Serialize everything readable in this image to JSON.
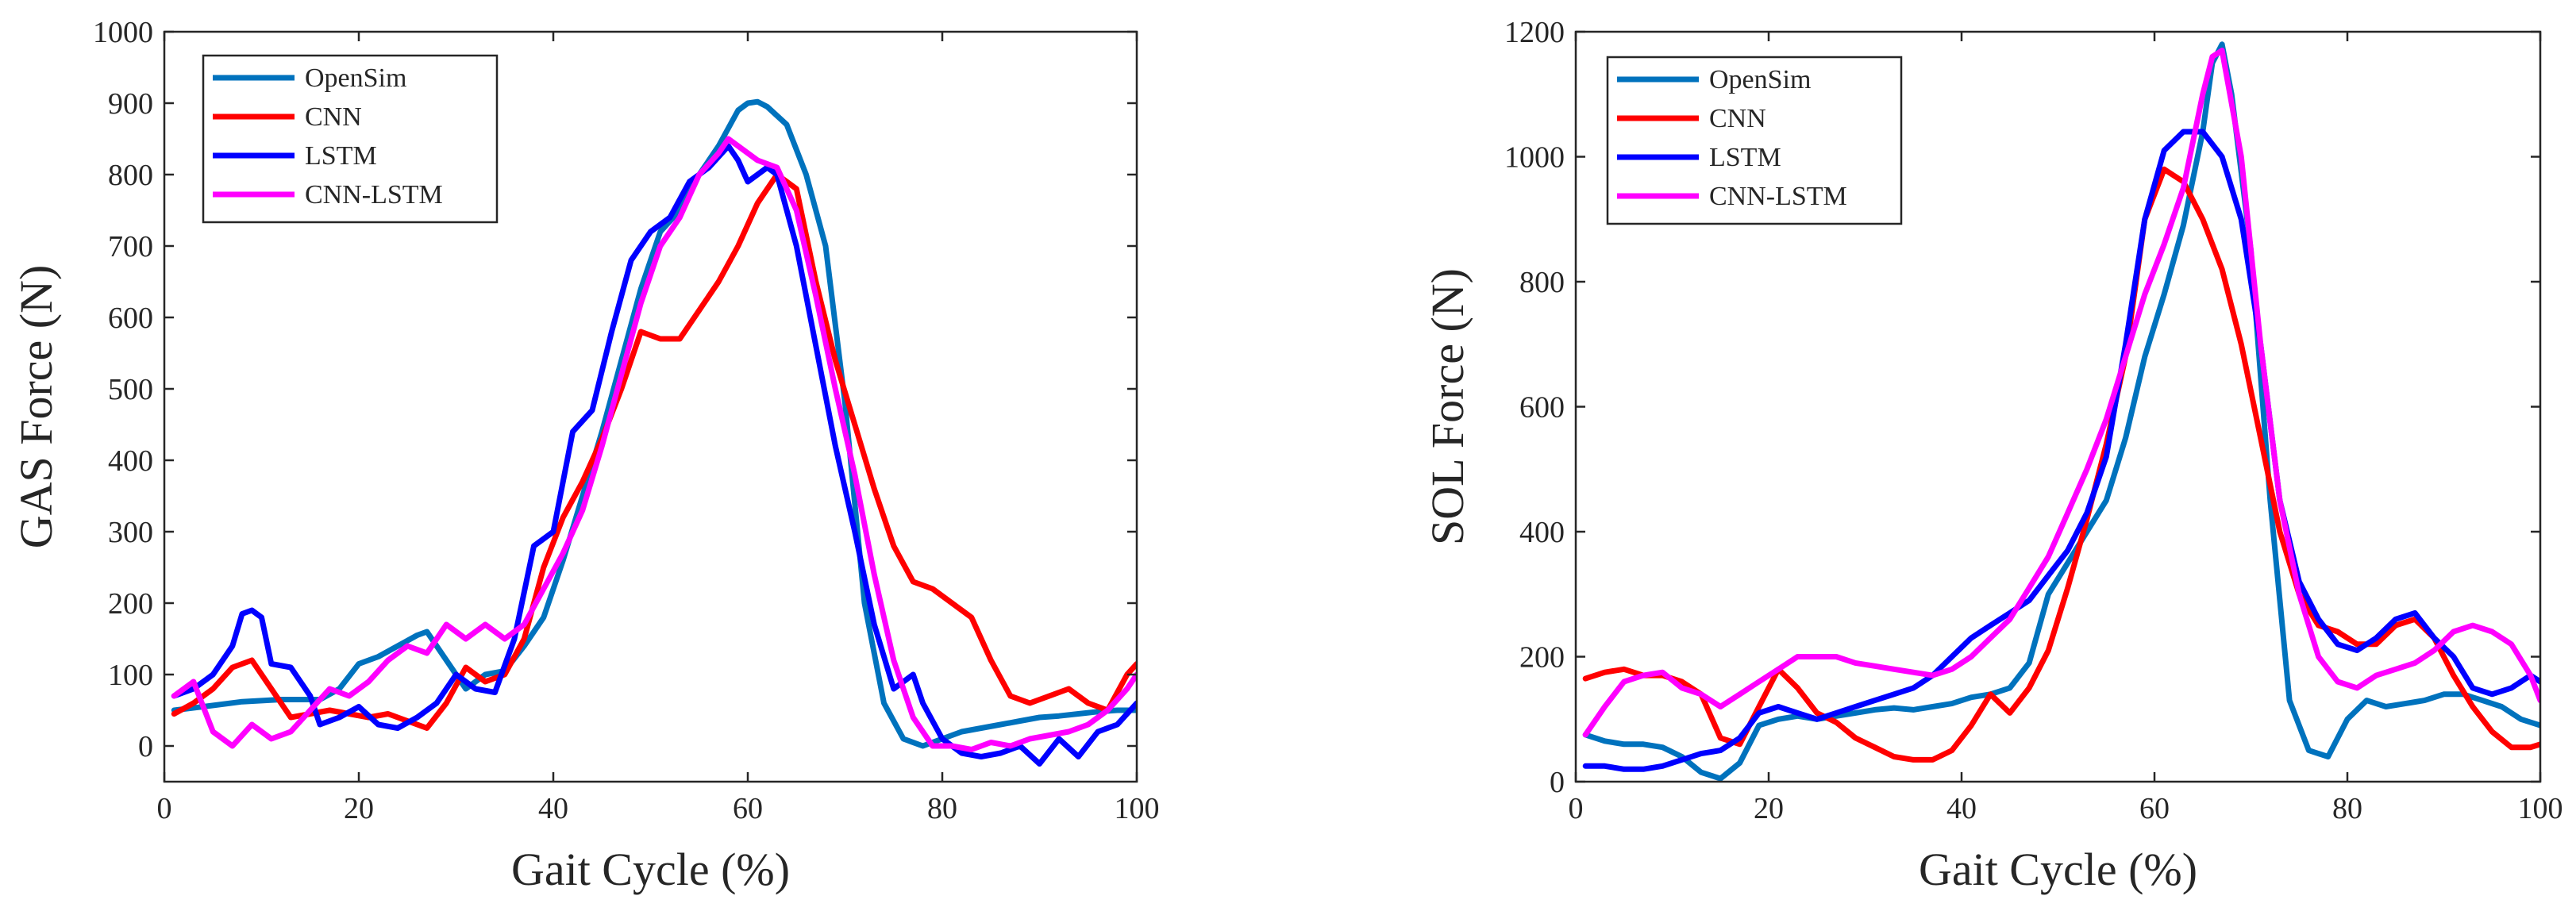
{
  "figure": {
    "background": "#ffffff",
    "axis_color": "#262626"
  },
  "chart_data": [
    {
      "type": "line",
      "xlabel": "Gait Cycle (%)",
      "ylabel": "GAS Force (N)",
      "xlim": [
        0,
        100
      ],
      "ylim": [
        -50,
        1000
      ],
      "xticks": [
        0,
        20,
        40,
        60,
        80,
        100
      ],
      "xtick_labels": [
        "0",
        "20",
        "40",
        "60",
        "80",
        "100"
      ],
      "yticks": [
        0,
        100,
        200,
        300,
        400,
        500,
        600,
        700,
        800,
        900,
        1000
      ],
      "ytick_labels": [
        "0",
        "100",
        "200",
        "300",
        "400",
        "500",
        "600",
        "700",
        "800",
        "900",
        "1000"
      ],
      "legend_position": "top-left",
      "series": [
        {
          "name": "OpenSim",
          "color": "#0072BD",
          "x": [
            1,
            4,
            8,
            12,
            16,
            18,
            20,
            22,
            24,
            26,
            27,
            29,
            31,
            33,
            35,
            37,
            39,
            41,
            43,
            45,
            47,
            49,
            51,
            53,
            55,
            57,
            59,
            60,
            61,
            62,
            64,
            66,
            68,
            70,
            72,
            74,
            76,
            78,
            80,
            82,
            84,
            86,
            88,
            90,
            92,
            94,
            96,
            98,
            100
          ],
          "values": [
            50,
            55,
            62,
            65,
            65,
            80,
            115,
            125,
            140,
            155,
            160,
            120,
            80,
            100,
            105,
            140,
            180,
            260,
            350,
            440,
            540,
            640,
            720,
            750,
            800,
            840,
            890,
            900,
            902,
            895,
            870,
            800,
            700,
            480,
            200,
            60,
            10,
            0,
            10,
            20,
            25,
            30,
            35,
            40,
            42,
            45,
            48,
            50,
            50
          ]
        },
        {
          "name": "CNN",
          "color": "#FF0000",
          "x": [
            1,
            3,
            5,
            7,
            9,
            11,
            13,
            15,
            17,
            19,
            21,
            23,
            25,
            27,
            29,
            31,
            33,
            35,
            37,
            39,
            41,
            43,
            45,
            47,
            49,
            51,
            53,
            55,
            57,
            59,
            61,
            63,
            65,
            67,
            69,
            71,
            73,
            75,
            77,
            79,
            81,
            83,
            85,
            87,
            89,
            91,
            93,
            95,
            97,
            99,
            100
          ],
          "values": [
            45,
            60,
            80,
            110,
            120,
            80,
            40,
            45,
            50,
            45,
            40,
            45,
            35,
            25,
            60,
            110,
            90,
            100,
            150,
            250,
            320,
            370,
            430,
            500,
            580,
            570,
            570,
            610,
            650,
            700,
            760,
            800,
            780,
            650,
            540,
            450,
            360,
            280,
            230,
            220,
            200,
            180,
            120,
            70,
            60,
            70,
            80,
            60,
            50,
            100,
            115
          ]
        },
        {
          "name": "LSTM",
          "color": "#0000FF",
          "x": [
            1,
            3,
            5,
            7,
            8,
            9,
            10,
            11,
            13,
            15,
            16,
            18,
            20,
            22,
            24,
            26,
            28,
            30,
            32,
            34,
            36,
            38,
            40,
            42,
            44,
            46,
            48,
            50,
            52,
            54,
            56,
            58,
            59,
            60,
            62,
            63,
            65,
            67,
            69,
            71,
            73,
            75,
            77,
            78,
            80,
            82,
            84,
            86,
            88,
            90,
            92,
            94,
            96,
            98,
            100
          ],
          "values": [
            70,
            80,
            100,
            140,
            185,
            190,
            180,
            115,
            110,
            70,
            30,
            40,
            55,
            30,
            25,
            40,
            60,
            100,
            80,
            75,
            150,
            280,
            300,
            440,
            470,
            580,
            680,
            720,
            740,
            790,
            810,
            840,
            820,
            790,
            810,
            800,
            700,
            560,
            420,
            300,
            170,
            80,
            100,
            60,
            10,
            -10,
            -15,
            -10,
            0,
            -25,
            10,
            -15,
            20,
            30,
            60
          ]
        },
        {
          "name": "CNN-LSTM",
          "color": "#FF00FF",
          "x": [
            1,
            3,
            5,
            7,
            9,
            11,
            13,
            15,
            17,
            19,
            21,
            23,
            25,
            27,
            29,
            31,
            33,
            35,
            37,
            39,
            41,
            43,
            45,
            47,
            49,
            51,
            53,
            55,
            57,
            58,
            59,
            61,
            63,
            65,
            67,
            69,
            71,
            73,
            75,
            77,
            79,
            81,
            83,
            85,
            87,
            89,
            91,
            93,
            95,
            97,
            99,
            100
          ],
          "values": [
            70,
            90,
            20,
            0,
            30,
            10,
            20,
            50,
            80,
            70,
            90,
            120,
            140,
            130,
            170,
            150,
            170,
            150,
            170,
            220,
            270,
            330,
            420,
            520,
            620,
            700,
            740,
            800,
            830,
            850,
            840,
            820,
            810,
            750,
            630,
            500,
            380,
            240,
            120,
            40,
            0,
            0,
            -5,
            5,
            0,
            10,
            15,
            20,
            30,
            50,
            80,
            100
          ]
        }
      ]
    },
    {
      "type": "line",
      "xlabel": "Gait Cycle (%)",
      "ylabel": "SOL Force (N)",
      "xlim": [
        0,
        100
      ],
      "ylim": [
        0,
        1200
      ],
      "xticks": [
        0,
        20,
        40,
        60,
        80,
        100
      ],
      "xtick_labels": [
        "0",
        "20",
        "40",
        "60",
        "80",
        "100"
      ],
      "yticks": [
        0,
        200,
        400,
        600,
        800,
        1000,
        1200
      ],
      "ytick_labels": [
        "0",
        "200",
        "400",
        "600",
        "800",
        "1000",
        "1200"
      ],
      "legend_position": "top-left",
      "series": [
        {
          "name": "OpenSim",
          "color": "#0072BD",
          "x": [
            1,
            3,
            5,
            7,
            9,
            11,
            13,
            15,
            17,
            19,
            21,
            23,
            25,
            27,
            29,
            31,
            33,
            35,
            37,
            39,
            41,
            43,
            45,
            47,
            49,
            51,
            53,
            55,
            57,
            59,
            61,
            63,
            65,
            66,
            67,
            68,
            70,
            72,
            74,
            76,
            78,
            80,
            82,
            84,
            86,
            88,
            90,
            92,
            94,
            96,
            98,
            100
          ],
          "values": [
            75,
            65,
            60,
            60,
            55,
            40,
            15,
            5,
            30,
            90,
            100,
            105,
            100,
            105,
            110,
            115,
            118,
            115,
            120,
            125,
            135,
            140,
            150,
            190,
            300,
            350,
            400,
            450,
            550,
            680,
            780,
            890,
            1040,
            1150,
            1180,
            1100,
            850,
            450,
            130,
            50,
            40,
            100,
            130,
            120,
            125,
            130,
            140,
            140,
            130,
            120,
            100,
            90
          ]
        },
        {
          "name": "CNN",
          "color": "#FF0000",
          "x": [
            1,
            3,
            5,
            7,
            9,
            11,
            13,
            15,
            17,
            19,
            21,
            23,
            25,
            27,
            29,
            31,
            33,
            35,
            37,
            39,
            41,
            43,
            45,
            47,
            49,
            51,
            53,
            55,
            57,
            59,
            61,
            63,
            65,
            67,
            69,
            71,
            73,
            75,
            77,
            79,
            81,
            83,
            85,
            87,
            89,
            91,
            93,
            95,
            97,
            99,
            100
          ],
          "values": [
            165,
            175,
            180,
            170,
            170,
            160,
            140,
            70,
            60,
            120,
            180,
            150,
            110,
            95,
            70,
            55,
            40,
            35,
            35,
            50,
            90,
            140,
            110,
            150,
            210,
            310,
            420,
            540,
            680,
            900,
            980,
            960,
            900,
            820,
            700,
            550,
            400,
            300,
            250,
            240,
            220,
            220,
            250,
            260,
            230,
            170,
            120,
            80,
            55,
            55,
            60
          ]
        },
        {
          "name": "LSTM",
          "color": "#0000FF",
          "x": [
            1,
            3,
            5,
            7,
            9,
            11,
            13,
            15,
            17,
            19,
            21,
            23,
            25,
            27,
            29,
            31,
            33,
            35,
            37,
            39,
            41,
            43,
            45,
            47,
            49,
            51,
            53,
            55,
            57,
            59,
            61,
            63,
            65,
            67,
            69,
            71,
            73,
            75,
            77,
            79,
            81,
            83,
            85,
            87,
            89,
            91,
            93,
            95,
            97,
            99,
            100
          ],
          "values": [
            25,
            25,
            20,
            20,
            25,
            35,
            45,
            50,
            70,
            110,
            120,
            110,
            100,
            110,
            120,
            130,
            140,
            150,
            170,
            200,
            230,
            250,
            270,
            290,
            330,
            370,
            430,
            520,
            700,
            900,
            1010,
            1040,
            1040,
            1000,
            900,
            700,
            450,
            320,
            260,
            220,
            210,
            230,
            260,
            270,
            230,
            200,
            150,
            140,
            150,
            170,
            160
          ]
        },
        {
          "name": "CNN-LSTM",
          "color": "#FF00FF",
          "x": [
            1,
            3,
            5,
            7,
            9,
            11,
            13,
            15,
            17,
            19,
            21,
            23,
            25,
            27,
            29,
            31,
            33,
            35,
            37,
            39,
            41,
            43,
            45,
            47,
            49,
            51,
            53,
            55,
            57,
            59,
            61,
            63,
            65,
            66,
            67,
            69,
            71,
            73,
            75,
            77,
            79,
            81,
            83,
            85,
            87,
            89,
            91,
            93,
            95,
            97,
            99,
            100
          ],
          "values": [
            75,
            120,
            160,
            170,
            175,
            150,
            140,
            120,
            140,
            160,
            180,
            200,
            200,
            200,
            190,
            185,
            180,
            175,
            170,
            180,
            200,
            230,
            260,
            310,
            360,
            430,
            500,
            580,
            680,
            780,
            860,
            950,
            1100,
            1160,
            1170,
            1000,
            700,
            450,
            300,
            200,
            160,
            150,
            170,
            180,
            190,
            210,
            240,
            250,
            240,
            220,
            170,
            130
          ]
        }
      ]
    }
  ]
}
